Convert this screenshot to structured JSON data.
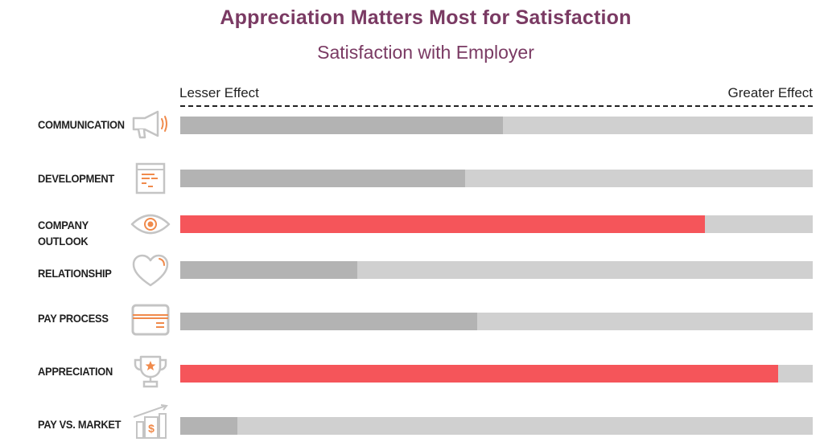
{
  "chart_data": {
    "type": "bar",
    "title": "Appreciation Matters Most for Satisfaction",
    "subtitle": "Satisfaction with Employer",
    "scale_labels": {
      "left": "Lesser Effect",
      "right": "Greater Effect"
    },
    "orientation": "horizontal",
    "categories": [
      "COMMUNICATION",
      "DEVELOPMENT",
      "COMPANY OUTLOOK",
      "RELATIONSHIP",
      "PAY PROCESS",
      "APPRECIATION",
      "PAY VS. MARKET"
    ],
    "values": [
      0.51,
      0.45,
      0.83,
      0.28,
      0.47,
      0.945,
      0.09
    ],
    "highlighted": [
      "COMPANY OUTLOOK",
      "APPRECIATION"
    ],
    "ylim": [
      0,
      1
    ],
    "grid": false,
    "legend": "none"
  },
  "rows": [
    {
      "label": "COMMUNICATION",
      "icon": "megaphone-icon"
    },
    {
      "label": "DEVELOPMENT",
      "icon": "document-icon"
    },
    {
      "label": "COMPANY OUTLOOK",
      "icon": "eye-icon"
    },
    {
      "label": "RELATIONSHIP",
      "icon": "heart-icon"
    },
    {
      "label": "PAY PROCESS",
      "icon": "credit-card-icon"
    },
    {
      "label": "APPRECIATION",
      "icon": "trophy-icon"
    },
    {
      "label": "PAY VS. MARKET",
      "icon": "money-growth-icon"
    }
  ],
  "colors": {
    "title": "#7a3a63",
    "bar_track": "#d0d0d0",
    "bar_fill": "#b3b3b3",
    "bar_highlight": "#f5555a",
    "icon_stroke": "#c4c4c4",
    "icon_accent": "#f08a4b"
  }
}
